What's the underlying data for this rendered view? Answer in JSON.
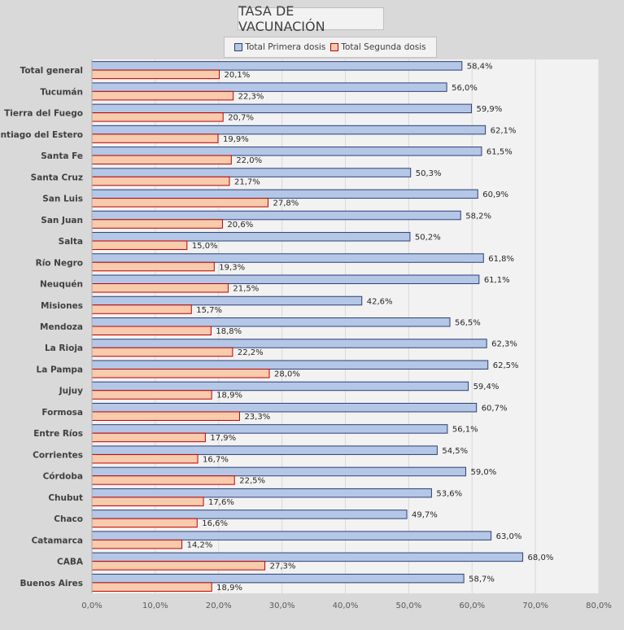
{
  "chart_data": {
    "type": "bar",
    "orientation": "horizontal",
    "title": "TASA DE VACUNACIÓN",
    "categories": [
      "Total general",
      "Tucumán",
      "Tierra del Fuego",
      "Santiago del Estero",
      "Santa Fe",
      "Santa Cruz",
      "San Luis",
      "San Juan",
      "Salta",
      "Río Negro",
      "Neuquén",
      "Misiones",
      "Mendoza",
      "La Rioja",
      "La Pampa",
      "Jujuy",
      "Formosa",
      "Entre Ríos",
      "Corrientes",
      "Córdoba",
      "Chubut",
      "Chaco",
      "Catamarca",
      "CABA",
      "Buenos Aires"
    ],
    "series": [
      {
        "name": "Total Primera dosis",
        "color": "#b4c7e7",
        "border": "#2f3f73",
        "values": [
          58.4,
          56.0,
          59.9,
          62.1,
          61.5,
          50.3,
          60.9,
          58.2,
          50.2,
          61.8,
          61.1,
          42.6,
          56.5,
          62.3,
          62.5,
          59.4,
          60.7,
          56.1,
          54.5,
          59.0,
          53.6,
          49.7,
          63.0,
          68.0,
          58.7
        ],
        "labels": [
          "58,4%",
          "56,0%",
          "59,9%",
          "62,1%",
          "61,5%",
          "50,3%",
          "60,9%",
          "58,2%",
          "50,2%",
          "61,8%",
          "61,1%",
          "42,6%",
          "56,5%",
          "62,3%",
          "62,5%",
          "59,4%",
          "60,7%",
          "56,1%",
          "54,5%",
          "59,0%",
          "53,6%",
          "49,7%",
          "63,0%",
          "68,0%",
          "58,7%"
        ]
      },
      {
        "name": "Total Segunda dosis",
        "color": "#f8cbad",
        "border": "#c00000",
        "values": [
          20.1,
          22.3,
          20.7,
          19.9,
          22.0,
          21.7,
          27.8,
          20.6,
          15.0,
          19.3,
          21.5,
          15.7,
          18.8,
          22.2,
          28.0,
          18.9,
          23.3,
          17.9,
          16.7,
          22.5,
          17.6,
          16.6,
          14.2,
          27.3,
          18.9
        ],
        "labels": [
          "20,1%",
          "22,3%",
          "20,7%",
          "19,9%",
          "22,0%",
          "21,7%",
          "27,8%",
          "20,6%",
          "15,0%",
          "19,3%",
          "21,5%",
          "15,7%",
          "18,8%",
          "22,2%",
          "28,0%",
          "18,9%",
          "23,3%",
          "17,9%",
          "16,7%",
          "22,5%",
          "17,6%",
          "16,6%",
          "14,2%",
          "27,3%",
          "18,9%"
        ]
      }
    ],
    "xlim": [
      0,
      80
    ],
    "x_ticks": [
      0,
      10,
      20,
      30,
      40,
      50,
      60,
      70,
      80
    ],
    "x_tick_labels": [
      "0,0%",
      "10,0%",
      "20,0%",
      "30,0%",
      "40,0%",
      "50,0%",
      "60,0%",
      "70,0%",
      "80,0%"
    ],
    "grid": true,
    "legend_position": "top"
  }
}
